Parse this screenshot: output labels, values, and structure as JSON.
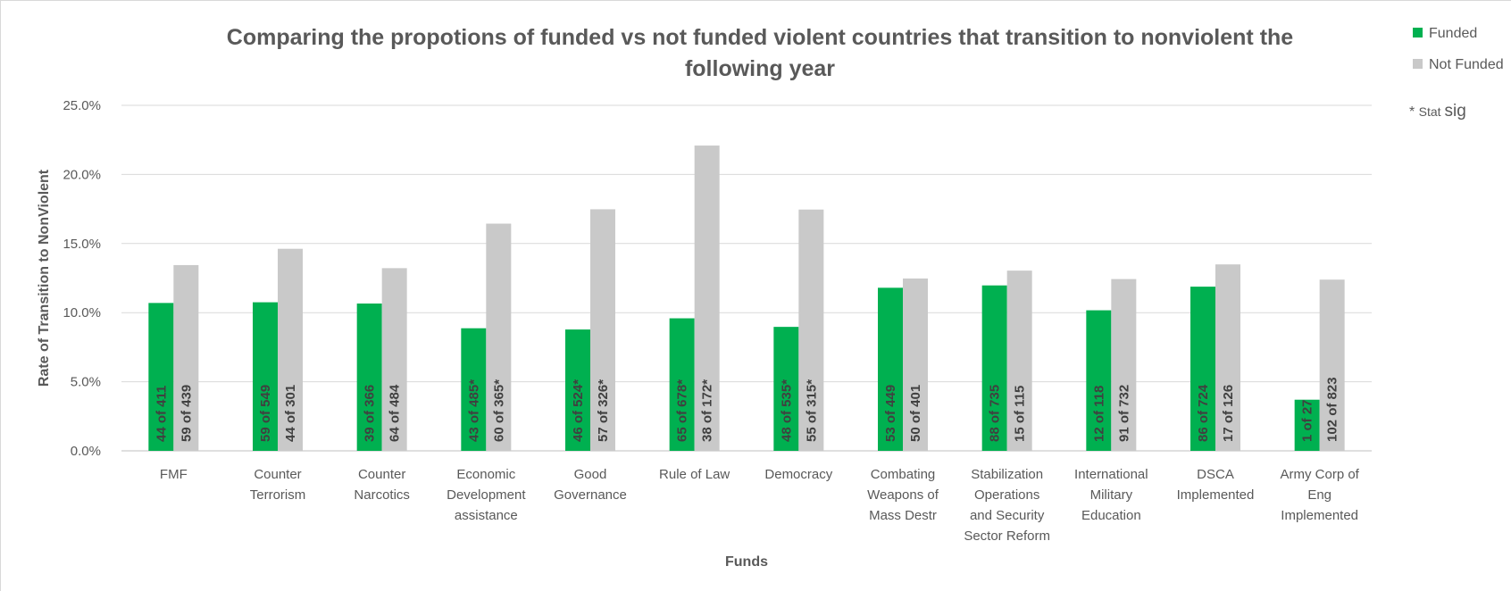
{
  "chart_data": {
    "type": "bar",
    "title_lines": [
      "Comparing the propotions of funded vs not funded violent countries that transition to nonviolent the",
      "following year"
    ],
    "xlabel": "Funds",
    "ylabel": "Rate of Transition to NonViolent",
    "ylim": [
      0,
      0.25
    ],
    "yticks": [
      0,
      0.05,
      0.1,
      0.15,
      0.2,
      0.25
    ],
    "ytick_labels": [
      "0.0%",
      "5.0%",
      "10.0%",
      "15.0%",
      "20.0%",
      "25.0%"
    ],
    "grid": true,
    "legend_position": "right",
    "categories": [
      [
        "FMF"
      ],
      [
        "Counter",
        "Terrorism"
      ],
      [
        "Counter",
        "Narcotics"
      ],
      [
        "Economic",
        "Development",
        "assistance"
      ],
      [
        "Good",
        "Governance"
      ],
      [
        "Rule of Law"
      ],
      [
        "Democracy"
      ],
      [
        "Combating",
        "Weapons of",
        "Mass Destr"
      ],
      [
        "Stabilization",
        "Operations",
        "and Security",
        "Sector Reform"
      ],
      [
        "International",
        "Military",
        "Education"
      ],
      [
        "DSCA",
        "Implemented"
      ],
      [
        "Army Corp of",
        "Eng",
        "Implemented"
      ]
    ],
    "series": [
      {
        "name": "Funded",
        "color": "#00b050",
        "values": [
          0.107,
          0.1075,
          0.1066,
          0.0887,
          0.0878,
          0.0959,
          0.0897,
          0.118,
          0.1197,
          0.1017,
          0.1188,
          0.037
        ],
        "labels": [
          "44 of 411",
          "59 of 549",
          "39 of 366",
          "43 of 485*",
          "46 of 524*",
          "65 of 678*",
          "48 of 535*",
          "53 of 449",
          "88 of 735",
          "12 of 118",
          "86 of 724",
          "1 of 27"
        ]
      },
      {
        "name": "Not Funded",
        "color": "#c9c9c9",
        "values": [
          0.1344,
          0.1462,
          0.1322,
          0.1644,
          0.1748,
          0.2209,
          0.1746,
          0.1247,
          0.1304,
          0.1243,
          0.1349,
          0.1239
        ],
        "labels": [
          "59 of 439",
          "44 of 301",
          "64 of 484",
          "60 of 365*",
          "57 of 326*",
          "38 of 172*",
          "55 of 315*",
          "50 of 401",
          "15 of 115",
          "91 of 732",
          "17 of 126",
          "102 of 823"
        ]
      }
    ],
    "legend_note": {
      "star": "*",
      "small": "Stat",
      "big": "sig"
    }
  }
}
